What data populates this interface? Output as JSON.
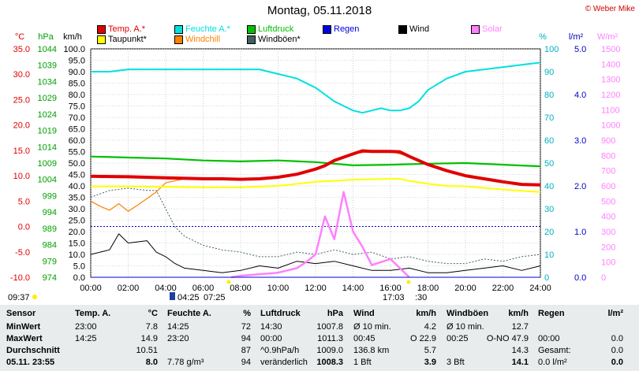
{
  "title": "Montag, 05.11.2018",
  "copyright": "© Weber Mike",
  "legend": [
    {
      "label": "Temp. A.*",
      "color": "#e00000"
    },
    {
      "label": "Feuchte A.*",
      "color": "#00e0e0"
    },
    {
      "label": "Luftdruck",
      "color": "#00c000"
    },
    {
      "label": "Regen",
      "color": "#0000e0"
    },
    {
      "label": "Wind",
      "color": "#000000"
    },
    {
      "label": "Solar",
      "color": "#ff80ff"
    },
    {
      "label": "Taupunkt*",
      "color": "#ffff00"
    },
    {
      "label": "Windchill",
      "color": "#ff8000"
    },
    {
      "label": "Windböen*",
      "color": "#406060"
    }
  ],
  "axis_units": {
    "temp": "°C",
    "pressure": "hPa",
    "wind": "km/h",
    "humidity": "%",
    "rain": "l/m²",
    "solar": "W/m²"
  },
  "axis_colors": {
    "temp": "#e00000",
    "pressure": "#00a000",
    "wind": "#000000",
    "humidity": "#00b0c0",
    "rain": "#0000c0",
    "solar": "#ff80ff"
  },
  "ticks": {
    "temp": [
      "35.0",
      "30.0",
      "25.0",
      "20.0",
      "15.0",
      "10.0",
      "5.0",
      "0.0",
      "-5.0",
      "-10.0"
    ],
    "pressure": [
      "1044",
      "1039",
      "1034",
      "1029",
      "1024",
      "1019",
      "1014",
      "1009",
      "1004",
      "999",
      "994",
      "989",
      "984",
      "979",
      "974"
    ],
    "wind": [
      "100.0",
      "95.0",
      "90.0",
      "85.0",
      "80.0",
      "75.0",
      "70.0",
      "65.0",
      "60.0",
      "55.0",
      "50.0",
      "45.0",
      "40.0",
      "35.0",
      "30.0",
      "25.0",
      "20.0",
      "15.0",
      "10.0",
      "5.0",
      "0.0"
    ],
    "humidity": [
      "100",
      "90",
      "80",
      "70",
      "60",
      "50",
      "40",
      "30",
      "20",
      "10",
      "0"
    ],
    "rain": [
      "5.0",
      "4.0",
      "3.0",
      "2.0",
      "1.0",
      "0.0"
    ],
    "solar": [
      "1500",
      "1400",
      "1300",
      "1200",
      "1100",
      "1000",
      "900",
      "800",
      "700",
      "600",
      "500",
      "400",
      "300",
      "200",
      "100",
      "0"
    ],
    "time": [
      "00:00",
      "02:00",
      "04:00",
      "06:00",
      "08:00",
      "10:00",
      "12:00",
      "14:00",
      "16:00",
      "18:00",
      "20:00",
      "22:00",
      "24:00"
    ]
  },
  "markers": {
    "left": "09:37",
    "sunrise": "04:25",
    "dawn": "07:25",
    "sunset": "17:03",
    "dusk": ":30"
  },
  "chart_data": {
    "type": "line",
    "title": "Montag, 05.11.2018",
    "x_unit": "hours",
    "xlim": [
      0,
      24
    ],
    "series": [
      {
        "name": "Temp. A.*",
        "axis": "temp",
        "color": "#e00000",
        "x": [
          0,
          2,
          4,
          6,
          7,
          8,
          9,
          10,
          11,
          12,
          12.5,
          13,
          14,
          14.5,
          15,
          16,
          16.5,
          17,
          18,
          19,
          20,
          21,
          22,
          23,
          24
        ],
        "values": [
          9.9,
          9.8,
          9.6,
          9.4,
          9.4,
          9.3,
          9.4,
          9.7,
          10.3,
          11.3,
          12.0,
          13.0,
          14.3,
          14.9,
          14.8,
          14.8,
          14.7,
          13.8,
          12.2,
          11.0,
          10.0,
          9.4,
          8.8,
          8.3,
          8.2
        ]
      },
      {
        "name": "Feuchte A.*",
        "axis": "humidity",
        "color": "#00e0e0",
        "x": [
          0,
          1,
          2,
          3,
          4,
          5,
          6,
          7,
          8,
          9,
          10,
          11,
          12,
          12.5,
          13,
          13.5,
          14,
          14.5,
          15,
          15.5,
          16,
          16.5,
          17,
          17.5,
          18,
          19,
          20,
          21,
          22,
          23,
          24
        ],
        "values": [
          90,
          90,
          91,
          91,
          91,
          91,
          91,
          91,
          91,
          91,
          89,
          87,
          83,
          80,
          77,
          75,
          73,
          72,
          73,
          74,
          73,
          73,
          74,
          77,
          82,
          87,
          90,
          91,
          92,
          93,
          94
        ]
      },
      {
        "name": "Luftdruck",
        "axis": "pressure",
        "color": "#00c000",
        "x": [
          0,
          2,
          4,
          6,
          8,
          10,
          12,
          14,
          16,
          18,
          20,
          22,
          24
        ],
        "values": [
          1011.0,
          1010.7,
          1010.4,
          1009.8,
          1009.5,
          1009.8,
          1009.3,
          1008.3,
          1008.5,
          1008.8,
          1009.0,
          1008.5,
          1008.0
        ]
      },
      {
        "name": "Taupunkt*",
        "axis": "temp",
        "color": "#ffff00",
        "x": [
          0,
          2,
          4,
          6,
          8,
          10,
          12,
          14,
          16,
          16.5,
          17,
          18,
          19,
          20,
          21,
          22,
          23,
          24
        ],
        "values": [
          7.9,
          7.9,
          7.8,
          7.7,
          7.7,
          8.0,
          8.8,
          9.2,
          9.4,
          9.4,
          9.0,
          8.4,
          8.0,
          7.9,
          7.6,
          7.3,
          7.0,
          6.8
        ]
      },
      {
        "name": "Windchill",
        "axis": "temp",
        "color": "#ff8000",
        "x": [
          0,
          0.5,
          1,
          1.5,
          2,
          2.5,
          3,
          3.5,
          4,
          5,
          6,
          8,
          9,
          10,
          11,
          12,
          13,
          14,
          15,
          16,
          17
        ],
        "values": [
          5.0,
          4.0,
          3.2,
          4.5,
          3.0,
          4.2,
          5.5,
          6.8,
          8.6,
          9.4,
          9.4,
          9.3,
          9.4,
          9.7,
          10.3,
          11.3,
          13.0,
          14.3,
          14.8,
          14.8,
          13.8
        ]
      },
      {
        "name": "Wind",
        "axis": "wind",
        "color": "#000000",
        "x": [
          0,
          1,
          1.5,
          2,
          3,
          3.5,
          4,
          4.5,
          5,
          6,
          7,
          8,
          9,
          10,
          11,
          12,
          13,
          14,
          15,
          16,
          17,
          18,
          19,
          20,
          21,
          22,
          23,
          24
        ],
        "values": [
          10,
          12,
          19,
          15,
          16,
          11,
          9,
          6,
          4,
          3,
          2,
          3,
          5,
          4,
          7,
          6,
          7,
          5,
          3,
          3,
          4,
          2,
          2,
          3,
          4,
          5,
          3,
          5
        ]
      },
      {
        "name": "Windböen*",
        "axis": "wind",
        "color": "#406060",
        "x": [
          0,
          1,
          2,
          3,
          3.5,
          4,
          4.5,
          5,
          6,
          7,
          8,
          9,
          10,
          11,
          12,
          13,
          14,
          15,
          16,
          17,
          18,
          19,
          20,
          21,
          22,
          23,
          24
        ],
        "values": [
          35,
          38,
          39,
          38,
          38,
          30,
          22,
          18,
          14,
          12,
          11,
          9,
          9,
          11,
          10,
          12,
          10,
          11,
          8,
          9,
          7,
          6,
          6,
          8,
          7,
          9,
          10
        ]
      },
      {
        "name": "Solar",
        "axis": "solar",
        "color": "#ff80ff",
        "x": [
          7.5,
          8,
          9,
          10,
          11,
          11.5,
          12,
          12.5,
          13,
          13.5,
          14,
          14.5,
          15,
          15.5,
          16,
          16.5,
          17
        ],
        "values": [
          0,
          10,
          20,
          30,
          60,
          100,
          150,
          400,
          250,
          560,
          300,
          200,
          80,
          100,
          120,
          60,
          0
        ]
      },
      {
        "name": "Regen",
        "axis": "rain",
        "color": "#0000e0",
        "x": [
          0,
          24
        ],
        "values": [
          0,
          0
        ]
      }
    ],
    "axes": {
      "temp": {
        "label": "°C",
        "ylim": [
          -10,
          35
        ]
      },
      "pressure": {
        "label": "hPa",
        "ylim": [
          974,
          1044
        ]
      },
      "wind": {
        "label": "km/h",
        "ylim": [
          0,
          100
        ]
      },
      "humidity": {
        "label": "%",
        "ylim": [
          0,
          100
        ]
      },
      "rain": {
        "label": "l/m²",
        "ylim": [
          0,
          5
        ]
      },
      "solar": {
        "label": "W/m²",
        "ylim": [
          0,
          1500
        ]
      }
    },
    "grid": true
  },
  "table": {
    "headers": [
      "Sensor",
      "Temp. A.",
      "°C",
      "Feuchte A.",
      "%",
      "Luftdruck",
      "hPa",
      "Wind",
      "km/h",
      "Windböen",
      "km/h",
      "Regen",
      "l/m²"
    ],
    "rows": [
      {
        "label": "MinWert",
        "cells": [
          "23:00",
          "7.8",
          "14:25",
          "72",
          "14:30",
          "1007.8",
          "Ø 10 min.",
          "4.2",
          "Ø 10 min.",
          "12.7",
          "",
          ""
        ]
      },
      {
        "label": "MaxWert",
        "cells": [
          "14:25",
          "14.9",
          "23:20",
          "94",
          "00:00",
          "1011.3",
          "00:45",
          "O 22.9",
          "00:25",
          "O-NO 47.9",
          "00:00",
          "0.0"
        ]
      },
      {
        "label": "Durchschnitt",
        "cells": [
          "",
          "10.51",
          "",
          "87",
          "^0.9hPa/h",
          "1009.0",
          "136.8 km",
          "5.7",
          "",
          "14.3",
          "Gesamt:",
          "0.0"
        ]
      },
      {
        "label": "05.11. 23:55",
        "cells": [
          "",
          "8.0",
          "7.78 g/m³",
          "94",
          "veränderlich",
          "1008.3",
          "1 Bft",
          "3.9",
          "3 Bft",
          "14.1",
          "0.0 l/m²",
          "0.0"
        ]
      }
    ]
  }
}
